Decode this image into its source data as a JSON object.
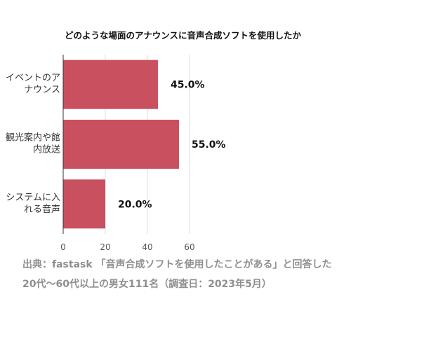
{
  "chart_data": {
    "type": "bar",
    "orientation": "horizontal",
    "title": "どのような場面のアナウンスに音声合成ソフトを使用したか",
    "categories": [
      [
        "イベントのア",
        "ナウンス"
      ],
      [
        "観光案内や館",
        "内放送"
      ],
      [
        "システムに入",
        "れる音声"
      ]
    ],
    "values": [
      45.0,
      55.0,
      20.0
    ],
    "data_labels": [
      "45.0%",
      "55.0%",
      "20.0%"
    ],
    "xlim": [
      0,
      60
    ],
    "xticks": [
      0,
      20,
      40,
      60
    ],
    "xlabel": "",
    "ylabel": "",
    "grid": true,
    "colors": {
      "bar": "#c9505f",
      "grid": "#dddddd",
      "axis": "#333333"
    }
  },
  "source_note": {
    "line1": "出典：fastask 「音声合成ソフトを使用したことがある」と回答した",
    "line2": "20代〜60代以上の男女111名（調査日：2023年5月）"
  }
}
